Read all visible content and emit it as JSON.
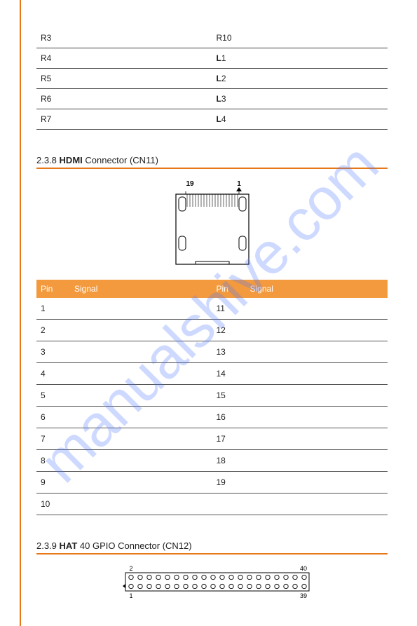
{
  "watermark": "manualshive.com",
  "topTable": {
    "rows": [
      [
        "R3",
        "R10"
      ],
      [
        "R4",
        "L1"
      ],
      [
        "R5",
        "L2"
      ],
      [
        "R6",
        "L3"
      ],
      [
        "R7",
        "L4"
      ]
    ]
  },
  "section238": {
    "number": "2.3.8",
    "boldPart": "HDMI",
    "rest": " Connector (CN11)"
  },
  "hdmiDiagram": {
    "label19": "19",
    "label1": "1"
  },
  "pinTable": {
    "headers": [
      "Pin",
      "Signal",
      "Pin",
      "Signal"
    ],
    "rows": [
      [
        "1",
        "",
        "11",
        ""
      ],
      [
        "2",
        "",
        "12",
        ""
      ],
      [
        "3",
        "",
        "13",
        ""
      ],
      [
        "4",
        "",
        "14",
        ""
      ],
      [
        "5",
        "",
        "15",
        ""
      ],
      [
        "6",
        "",
        "16",
        ""
      ],
      [
        "7",
        "",
        "17",
        ""
      ],
      [
        "8",
        "",
        "18",
        ""
      ],
      [
        "9",
        "",
        "19",
        ""
      ],
      [
        "10",
        "",
        "",
        ""
      ]
    ]
  },
  "section239": {
    "number": "2.3.9",
    "boldPart": "HAT",
    "rest": " 40 GPIO Connector (CN12)"
  },
  "gpioDiagram": {
    "label2": "2",
    "label40": "40",
    "label1": "1",
    "label39": "39"
  },
  "colors": {
    "orange": "#e67817",
    "headerOrange": "#f39a3e",
    "border": "#444"
  }
}
